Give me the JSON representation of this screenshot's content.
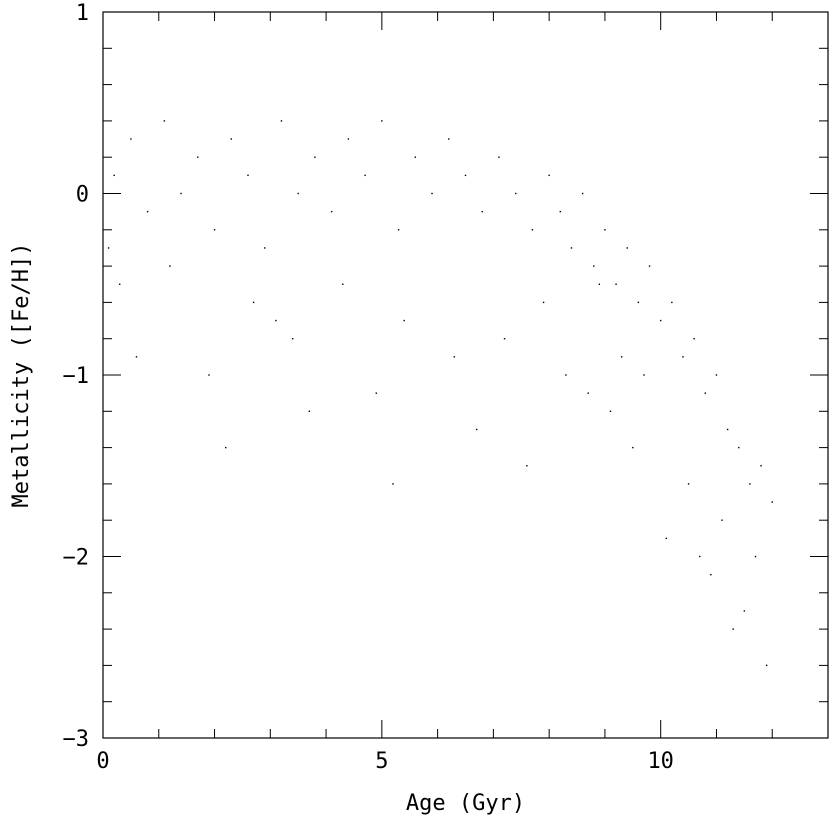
{
  "chart_data": {
    "type": "scatter",
    "xlabel": "Age (Gyr)",
    "ylabel": "Metallicity ([Fe/H])",
    "xlim": [
      0,
      13
    ],
    "ylim": [
      -3,
      1
    ],
    "x_ticks_major": [
      0,
      5,
      10
    ],
    "x_tick_labels": [
      "0",
      "5",
      "10"
    ],
    "y_ticks_major": [
      -3,
      -2,
      -1,
      0,
      1
    ],
    "y_tick_labels": [
      "−3",
      "−2",
      "−1",
      "0",
      "1"
    ],
    "grid": false,
    "legend": "none",
    "marker_color": "#000000",
    "series": [
      {
        "points_note_free": true,
        "x": [
          0.2,
          0.5,
          0.8,
          1.1,
          1.4,
          1.7,
          2.0,
          2.3,
          2.6,
          2.9,
          3.2,
          3.5,
          3.8,
          4.1,
          4.4,
          4.7,
          5.0,
          5.3,
          5.6,
          5.9,
          6.2,
          6.5,
          6.8,
          7.1,
          7.4,
          7.7,
          8.0,
          8.2,
          8.4,
          8.6,
          8.8,
          9.0,
          9.2,
          9.4,
          9.6,
          9.8,
          10.0,
          10.2,
          10.4,
          10.6,
          10.8,
          11.0,
          11.2,
          11.4,
          11.6,
          11.8,
          12.0,
          0.3,
          1.2,
          2.7,
          3.4,
          4.3,
          5.4,
          6.3,
          7.2,
          8.3,
          9.1,
          9.5,
          10.5,
          11.1,
          11.7,
          0.6,
          1.9,
          3.1,
          4.9,
          6.7,
          7.6,
          8.7,
          9.3,
          10.1,
          10.9,
          11.5,
          0.1,
          2.2,
          3.7,
          5.2,
          7.9,
          8.9,
          9.7,
          10.7,
          11.3,
          11.9
        ],
        "y": [
          0.1,
          0.3,
          -0.1,
          0.4,
          0.0,
          0.2,
          -0.2,
          0.3,
          0.1,
          -0.3,
          0.4,
          0.0,
          0.2,
          -0.1,
          0.3,
          0.1,
          0.4,
          -0.2,
          0.2,
          0.0,
          0.3,
          0.1,
          -0.1,
          0.2,
          0.0,
          -0.2,
          0.1,
          -0.1,
          -0.3,
          0.0,
          -0.4,
          -0.2,
          -0.5,
          -0.3,
          -0.6,
          -0.4,
          -0.7,
          -0.6,
          -0.9,
          -0.8,
          -1.1,
          -1.0,
          -1.3,
          -1.4,
          -1.6,
          -1.5,
          -1.7,
          -0.5,
          -0.4,
          -0.6,
          -0.8,
          -0.5,
          -0.7,
          -0.9,
          -0.8,
          -1.0,
          -1.2,
          -1.4,
          -1.6,
          -1.8,
          -2.0,
          -0.9,
          -1.0,
          -0.7,
          -1.1,
          -1.3,
          -1.5,
          -1.1,
          -0.9,
          -1.9,
          -2.1,
          -2.3,
          -0.3,
          -1.4,
          -1.2,
          -1.6,
          -0.6,
          -0.5,
          -1.0,
          -2.0,
          -2.4,
          -2.6
        ]
      }
    ]
  }
}
